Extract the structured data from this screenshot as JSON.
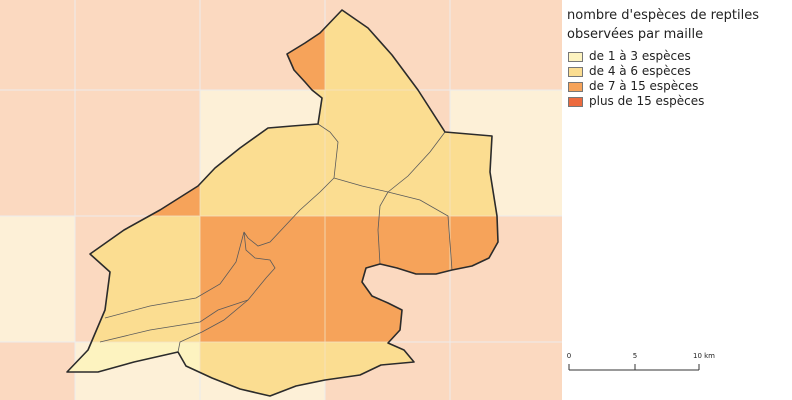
{
  "legend": {
    "title_line1": "nombre d'espèces de reptiles",
    "title_line2": "observées par maille",
    "classes": [
      {
        "label": "de 1 à 3 espèces",
        "color": "#fdf3c0"
      },
      {
        "label": "de 4 à 6 espèces",
        "color": "#fbdd91"
      },
      {
        "label": "de 7 à 15 espèces",
        "color": "#f6a35a"
      },
      {
        "label": "plus de 15 espèces",
        "color": "#ec6a3e"
      }
    ]
  },
  "map_colors": {
    "grid_background": "#fbd9c0",
    "grid_light": "#fdf0d7",
    "gridline": "#ececec",
    "outline": "#2b2b2b",
    "commune_border": "#5a5a5a"
  },
  "scalebar": {
    "labels": [
      "0",
      "5",
      "10 km"
    ]
  }
}
